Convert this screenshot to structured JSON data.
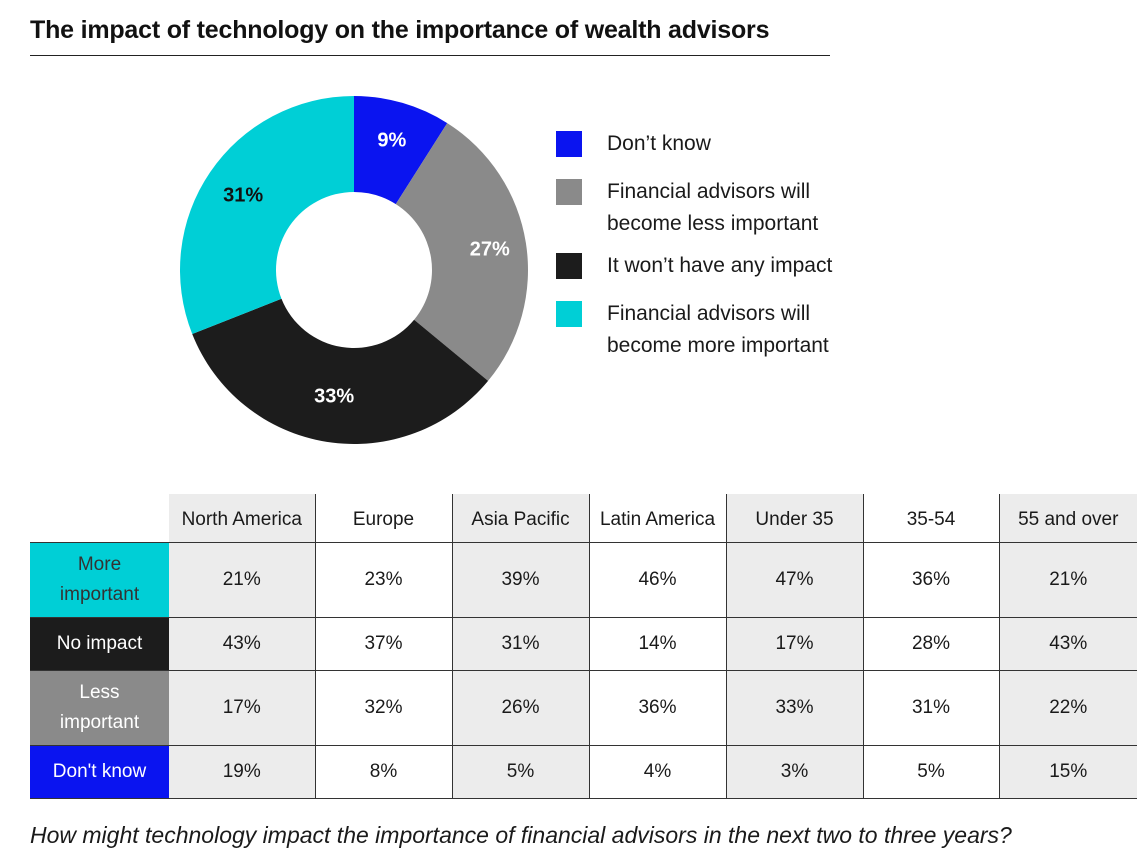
{
  "title": "The impact of technology on the importance of wealth advisors",
  "chart_data": {
    "type": "pie",
    "variant": "donut",
    "slices": [
      {
        "label": "Don’t know",
        "value": 9,
        "display": "9%",
        "color": "#0a14f0"
      },
      {
        "label": "Financial advisors will become less important",
        "value": 27,
        "display": "27%",
        "color": "#8a8a8a"
      },
      {
        "label": "It won’t have any impact",
        "value": 33,
        "display": "33%",
        "color": "#1c1c1c"
      },
      {
        "label": "Financial advisors will become more important",
        "value": 31,
        "display": "31%",
        "color": "#00cfd6"
      }
    ],
    "start_angle_deg": 0,
    "direction": "clockwise",
    "legend_position": "right"
  },
  "legend": [
    {
      "lines": [
        "Don’t know"
      ],
      "color": "#0a14f0"
    },
    {
      "lines": [
        "Financial advisors will",
        "become less important"
      ],
      "color": "#8a8a8a"
    },
    {
      "lines": [
        "It won’t have any impact"
      ],
      "color": "#1c1c1c"
    },
    {
      "lines": [
        "Financial advisors will",
        "become more important"
      ],
      "color": "#00cfd6"
    }
  ],
  "table": {
    "columns": [
      "North America",
      "Europe",
      "Asia Pacific",
      "Latin America",
      "Under 35",
      "35-54",
      "55 and over"
    ],
    "column_shaded": [
      true,
      false,
      true,
      false,
      true,
      false,
      true
    ],
    "rows": [
      {
        "lines": [
          "More",
          "important"
        ],
        "color": "#00cfd6",
        "light": true,
        "values": [
          "21%",
          "23%",
          "39%",
          "46%",
          "47%",
          "36%",
          "21%"
        ]
      },
      {
        "lines": [
          "No impact"
        ],
        "color": "#1c1c1c",
        "light": false,
        "values": [
          "43%",
          "37%",
          "31%",
          "14%",
          "17%",
          "28%",
          "43%"
        ]
      },
      {
        "lines": [
          "Less",
          "important"
        ],
        "color": "#8a8a8a",
        "light": false,
        "values": [
          "17%",
          "32%",
          "26%",
          "36%",
          "33%",
          "31%",
          "22%"
        ]
      },
      {
        "lines": [
          "Don't know"
        ],
        "color": "#0a14f0",
        "light": false,
        "values": [
          "19%",
          "8%",
          "5%",
          "4%",
          "3%",
          "5%",
          "15%"
        ]
      }
    ]
  },
  "footnote": "How might technology impact the importance of financial advisors in the next two to three years?"
}
